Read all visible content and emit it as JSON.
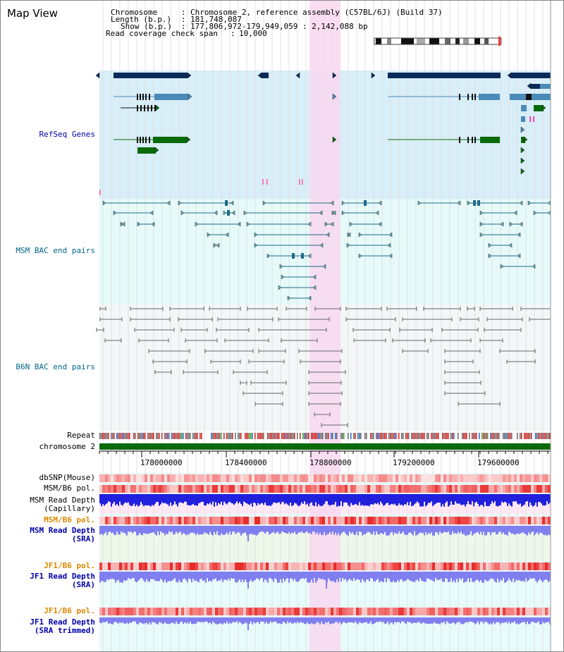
{
  "page_title": "Map View",
  "header": {
    "chromosome_key": "Chromosome",
    "chromosome_val": "Chromosome 2, reference assembly (C57BL/6J) (Build 37)",
    "length_key": "Length (b.p.)",
    "length_val": "181,748,087",
    "show_key": "Show (b.p.)",
    "show_val": "177,806,972-179,949,059 : 2,142,088 bp",
    "coverage_key": "Read coverage check span",
    "coverage_val": "10,000"
  },
  "tracks": {
    "refseq": "RefSeq Genes",
    "msm_bac": "MSM BAC end pairs",
    "b6n_bac": "B6N BAC end pairs",
    "repeat": "Repeat",
    "chromosome": "chromosome 2",
    "dbsnp": "dbSNP(Mouse)",
    "msm_b6_pol": "MSM/B6 pol.",
    "msm_depth_cap_1": "MSM Read Depth",
    "msm_depth_cap_2": "(Capillary)",
    "msm_b6_pol_sra": "MSM/B6 pol.",
    "msm_depth_sra_1": "MSM Read Depth",
    "msm_depth_sra_2": "(SRA)",
    "jf1_b6_pol": "JF1/B6 pol.",
    "jf1_depth_sra_1": "JF1 Read Depth",
    "jf1_depth_sra_2": "(SRA)",
    "jf1_b6_pol_trim": "JF1/B6 pol.",
    "jf1_depth_trim_1": "JF1 Read Depth",
    "jf1_depth_trim_2": "(SRA trimmed)"
  },
  "axis": {
    "ticks": [
      "178000000",
      "178400000",
      "178800000",
      "179200000",
      "179600000"
    ]
  },
  "colors": {
    "refseq_bg": "#d8eef8",
    "bac_bg": "#e6fafa",
    "highlight": "#f8d8f0",
    "gene_dark": "#0a2a5a",
    "gene_light": "#4a8ab8",
    "gene_green": "#0a6a0a",
    "msm_pair": "#1a6a8a",
    "b6n_pair": "#666666",
    "chromosome_bar": "#0a6a0a",
    "label_blue": "#0000aa",
    "label_teal": "#006688",
    "label_orange": "#dd8800",
    "depth_blue": "#2020dd",
    "depth_light": "#7f7ff0"
  }
}
